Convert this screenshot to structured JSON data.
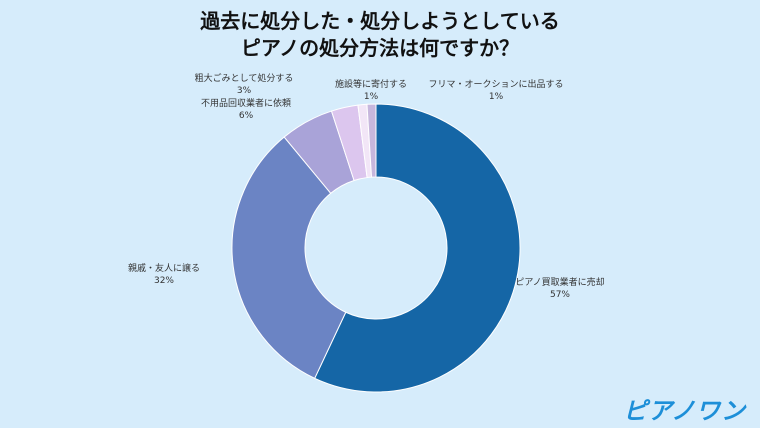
{
  "title_line1": "過去に処分した・処分しようとしている",
  "title_line2": "ピアノの処分方法は何ですか？",
  "logo": "ピアノワン",
  "chart_data": {
    "type": "pie",
    "donut": true,
    "title": "過去に処分した・処分しようとしている ピアノの処分方法は何ですか？",
    "slices": [
      {
        "label": "ピアノ買取業者に売却",
        "value": 57,
        "display": "57%",
        "color": "#1566a6"
      },
      {
        "label": "親戚・友人に譲る",
        "value": 32,
        "display": "32%",
        "color": "#6b84c4"
      },
      {
        "label": "不用品回収業者に依頼",
        "value": 6,
        "display": "6%",
        "color": "#a9a3d8"
      },
      {
        "label": "粗大ごみとして処分する",
        "value": 3,
        "display": "3%",
        "color": "#dcc6ee"
      },
      {
        "label": "施設等に寄付する",
        "value": 1,
        "display": "1%",
        "color": "#f2e6f7"
      },
      {
        "label": "フリマ・オークションに出品する",
        "value": 1,
        "display": "1%",
        "color": "#c7b7dd"
      }
    ]
  }
}
